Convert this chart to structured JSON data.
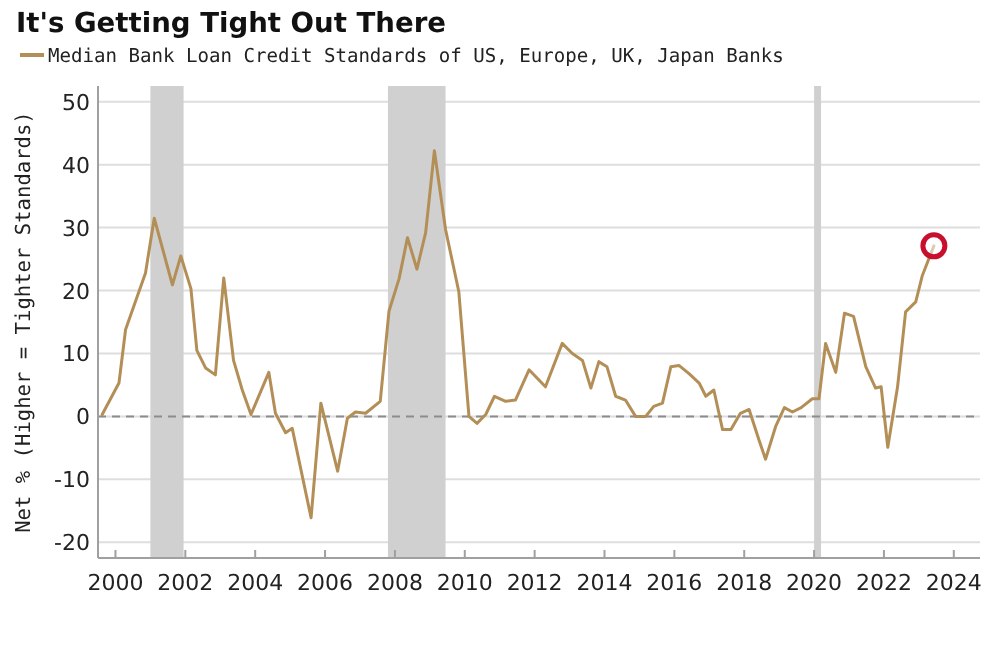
{
  "chart_data": {
    "type": "line",
    "title": "It's Getting Tight Out There",
    "ylabel": "Net % (Higher = Tighter Standards)",
    "xlim": [
      1999.5,
      2024.75
    ],
    "xticks": [
      2000,
      2002,
      2004,
      2006,
      2008,
      2010,
      2012,
      2014,
      2016,
      2018,
      2020,
      2022,
      2024
    ],
    "ylim": [
      -22.5,
      52.5
    ],
    "yticks": [
      -20,
      -10,
      0,
      10,
      20,
      30,
      40,
      50
    ],
    "grid": "y",
    "legend": "top left",
    "bands": [
      {
        "axis": "x",
        "from": 2001.0,
        "to": 2001.95,
        "color": "#d0d0d0"
      },
      {
        "axis": "x",
        "from": 2007.8,
        "to": 2009.45,
        "color": "#d0d0d0"
      },
      {
        "axis": "x",
        "from": 2020.0,
        "to": 2020.2,
        "color": "#d0d0d0"
      }
    ],
    "ref_lines": [
      {
        "axis": "y",
        "value": 0,
        "color": "#8c8c8c",
        "line_style": "dashed"
      }
    ],
    "series": [
      {
        "name": "Median Bank Loan Credit Standards of US, Europe, UK, Japan Banks",
        "color": "#b38f57",
        "line_style": "solid",
        "x": [
          1999.62,
          2000.1,
          2000.29,
          2000.86,
          2001.11,
          2001.63,
          2001.87,
          2002.16,
          2002.33,
          2002.58,
          2002.86,
          2003.1,
          2003.38,
          2003.63,
          2003.88,
          2004.39,
          2004.58,
          2004.87,
          2005.06,
          2005.6,
          2005.88,
          2006.36,
          2006.64,
          2006.87,
          2007.16,
          2007.58,
          2007.83,
          2008.12,
          2008.36,
          2008.63,
          2008.88,
          2009.13,
          2009.45,
          2009.83,
          2010.12,
          2010.35,
          2010.6,
          2010.85,
          2011.17,
          2011.45,
          2011.84,
          2012.31,
          2012.79,
          2013.08,
          2013.37,
          2013.61,
          2013.84,
          2014.07,
          2014.32,
          2014.6,
          2014.89,
          2015.18,
          2015.41,
          2015.66,
          2015.9,
          2016.13,
          2016.42,
          2016.71,
          2016.9,
          2017.13,
          2017.38,
          2017.62,
          2017.89,
          2018.14,
          2018.42,
          2018.61,
          2018.9,
          2019.15,
          2019.38,
          2019.63,
          2019.95,
          2020.14,
          2020.33,
          2020.62,
          2020.87,
          2021.13,
          2021.48,
          2021.76,
          2021.92,
          2022.11,
          2022.39,
          2022.62,
          2022.91,
          2023.1,
          2023.43
        ],
        "values": [
          0.3,
          5.3,
          13.8,
          22.8,
          31.5,
          20.9,
          25.5,
          20.3,
          10.5,
          7.7,
          6.6,
          22.0,
          8.9,
          4.2,
          0.3,
          7.0,
          0.5,
          -2.6,
          -1.9,
          -16.1,
          2.1,
          -8.7,
          -0.3,
          0.7,
          0.5,
          2.4,
          16.7,
          21.9,
          28.4,
          23.4,
          29.2,
          42.2,
          29.7,
          19.8,
          0,
          -1.1,
          0.3,
          3.2,
          2.4,
          2.6,
          7.4,
          4.7,
          11.6,
          10.0,
          8.9,
          4.5,
          8.7,
          7.9,
          3.2,
          2.6,
          0,
          0,
          1.6,
          2.1,
          7.9,
          8.1,
          6.8,
          5.3,
          3.2,
          4.2,
          -2.1,
          -2.1,
          0.5,
          1.1,
          -3.7,
          -6.8,
          -1.6,
          1.4,
          0.7,
          1.4,
          2.8,
          2.8,
          11.6,
          7.0,
          16.4,
          15.9,
          7.9,
          4.5,
          4.7,
          -4.9,
          4.7,
          16.6,
          18.2,
          22.4,
          27.1
        ]
      },
      {
        "type": "scatter",
        "color": "#c8102e",
        "marker": "circle",
        "x": [
          2023.43
        ],
        "values": [
          27.1
        ]
      }
    ]
  }
}
